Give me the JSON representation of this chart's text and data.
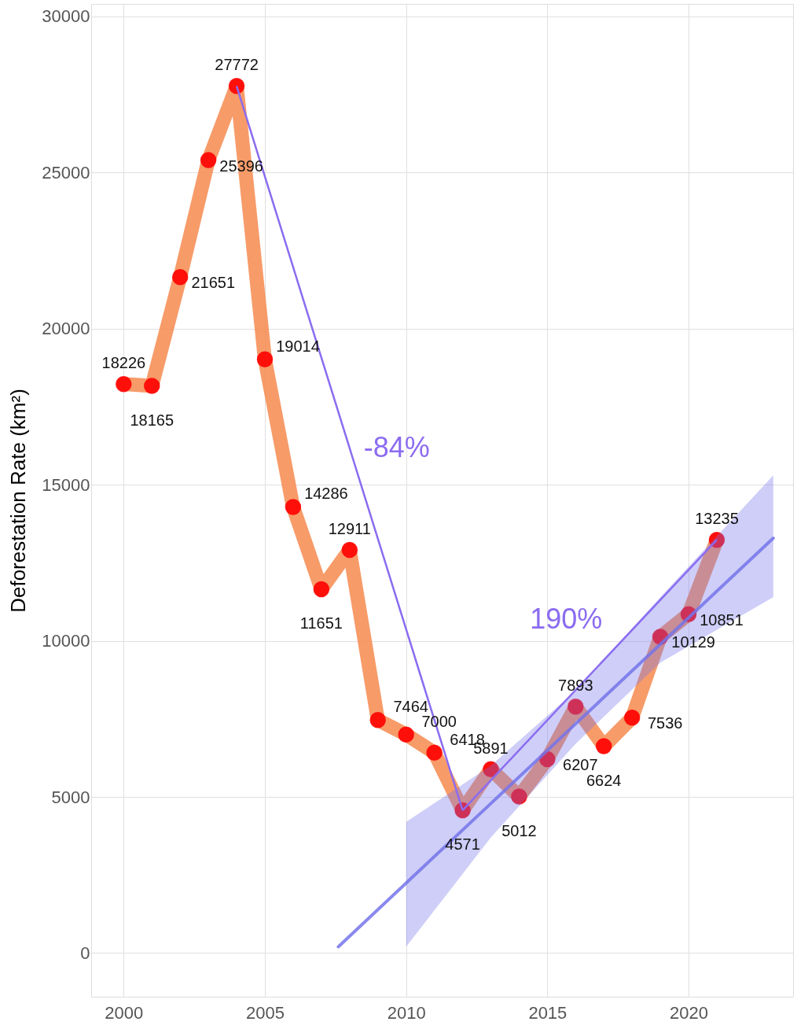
{
  "chart_data": {
    "type": "line",
    "ylabel": "Deforestation Rate (km²)",
    "x": [
      2000,
      2001,
      2002,
      2003,
      2004,
      2005,
      2006,
      2007,
      2008,
      2009,
      2010,
      2011,
      2012,
      2013,
      2014,
      2015,
      2016,
      2017,
      2018,
      2019,
      2020,
      2021
    ],
    "series": [
      {
        "color": "#f68a4f",
        "values": [
          18226,
          18165,
          21651,
          25396,
          27772,
          19014,
          14286,
          11651,
          12911,
          7464,
          7000,
          6418,
          4571,
          5891,
          5012,
          6207,
          7893,
          6624,
          7536,
          10129,
          10851,
          13235
        ]
      },
      {
        "type": "scatter",
        "color": "#ff0000",
        "marker": "circle",
        "values": [
          18226,
          18165,
          21651,
          25396,
          27772,
          19014,
          14286,
          11651,
          12911,
          7464,
          7000,
          6418,
          4571,
          5891,
          5012,
          6207,
          7893,
          6624,
          7536,
          10129,
          10851,
          13235
        ],
        "value_labels": [
          "18226",
          "18165",
          "21651",
          "25396",
          "27772",
          "19014",
          "14286",
          "11651",
          "12911",
          "7464",
          "7000",
          "6418",
          "4571",
          "5891",
          "5012",
          "6207",
          "7893",
          "6624",
          "7536",
          "10129",
          "10851",
          "13235"
        ]
      },
      {
        "type": "line",
        "color": "#7474ea",
        "x": [
          2007.6,
          2010,
          2013,
          2016,
          2019,
          2023
        ],
        "values": [
          200,
          2240,
          4790,
          7340,
          9890,
          13290
        ],
        "lower": [
          null,
          200,
          3700,
          6700,
          9300,
          11400
        ],
        "upper": [
          null,
          4200,
          6000,
          8400,
          11400,
          15300
        ]
      }
    ],
    "annotations": [
      "-84%",
      "190%"
    ],
    "xlim": [
      1998.85,
      2023.7
    ],
    "ylim": [
      -1400,
      30400
    ],
    "xticks": [
      2000,
      2005,
      2010,
      2015,
      2020
    ],
    "yticks": [
      0,
      5000,
      10000,
      15000,
      20000,
      25000,
      30000
    ],
    "grid": true
  }
}
